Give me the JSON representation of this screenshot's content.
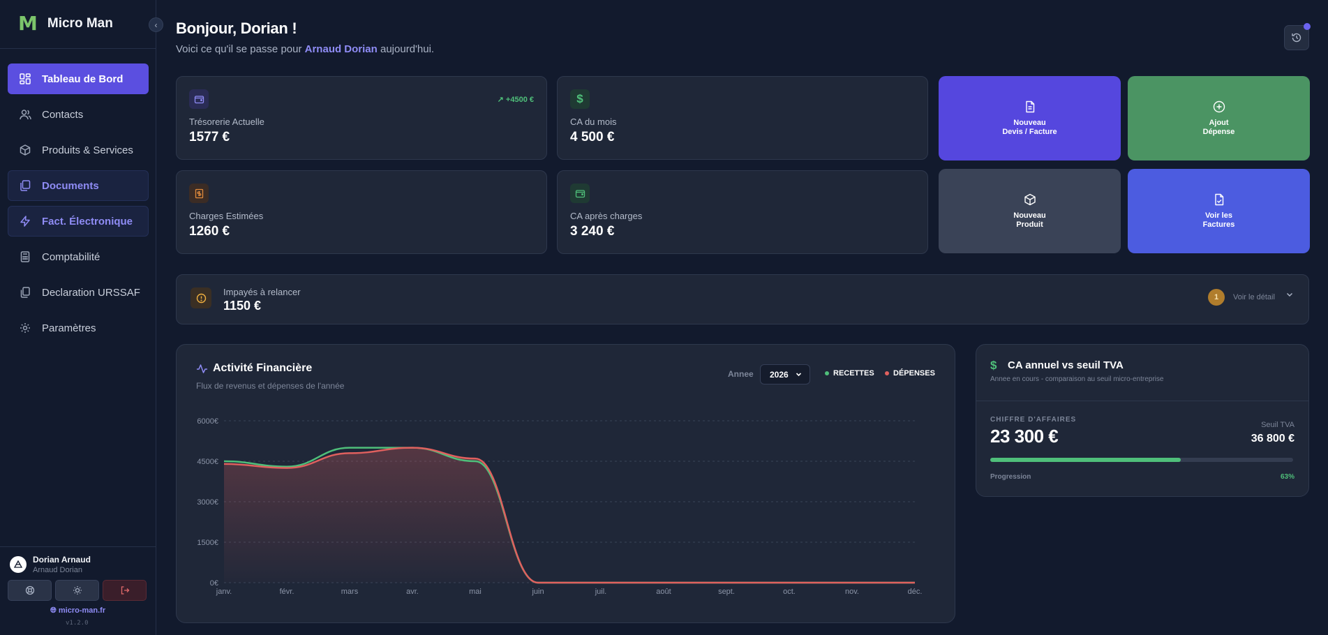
{
  "brand": {
    "logo": "M",
    "name": "Micro Man"
  },
  "sidebar": {
    "items": [
      {
        "label": "Tableau de Bord",
        "icon": "dashboard-icon",
        "state": "active"
      },
      {
        "label": "Contacts",
        "icon": "users-icon",
        "state": "normal"
      },
      {
        "label": "Produits & Services",
        "icon": "package-icon",
        "state": "normal"
      },
      {
        "label": "Documents",
        "icon": "documents-icon",
        "state": "tinted"
      },
      {
        "label": "Fact. Électronique",
        "icon": "lightning-icon",
        "state": "tinted"
      },
      {
        "label": "Comptabilité",
        "icon": "calculator-icon",
        "state": "normal"
      },
      {
        "label": "Declaration URSSAF",
        "icon": "copy-icon",
        "state": "normal"
      },
      {
        "label": "Paramètres",
        "icon": "gear-icon",
        "state": "normal"
      }
    ],
    "user": {
      "name": "Dorian Arnaud",
      "sub": "Arnaud Dorian"
    },
    "site": "micro-man.fr",
    "version": "v1.2.0"
  },
  "header": {
    "greeting": "Bonjour, Dorian !",
    "sub_prefix": "Voici ce qu'il se passe pour ",
    "sub_name": "Arnaud Dorian",
    "sub_suffix": " aujourd'hui."
  },
  "stats": [
    {
      "label": "Trésorerie Actuelle",
      "value": "1577 €",
      "trend": "↗ +4500 €",
      "icon": "wallet-icon",
      "color": "#6b63f0"
    },
    {
      "label": "CA du mois",
      "value": "4 500 €",
      "icon": "dollar-icon",
      "color": "#4fbf7a"
    },
    {
      "label": "Charges Estimées",
      "value": "1260 €",
      "icon": "receipt-icon",
      "color": "#e08a3c"
    },
    {
      "label": "CA après charges",
      "value": "3 240 €",
      "icon": "wallet-icon",
      "color": "#4fbf7a"
    }
  ],
  "actions": [
    {
      "line1": "Nouveau",
      "line2": "Devis / Facture",
      "icon": "document-icon",
      "color": "#5547de"
    },
    {
      "line1": "Ajout",
      "line2": "Dépense",
      "icon": "plus-circle-icon",
      "color": "#4b9463"
    },
    {
      "line1": "Nouveau",
      "line2": "Produit",
      "icon": "box-icon",
      "color": "#3a4357"
    },
    {
      "line1": "Voir les",
      "line2": "Factures",
      "icon": "file-check-icon",
      "color": "#4c5ce0"
    }
  ],
  "unpaid": {
    "label": "Impayés à relancer",
    "value": "1150 €",
    "count": "1",
    "link": "Voir le détail"
  },
  "activity": {
    "title": "Activité Financière",
    "subtitle": "Flux de revenus et dépenses de l'année",
    "year_label": "Annee",
    "year": "2026",
    "legend": {
      "income": "RECETTES",
      "expenses": "DÉPENSES"
    }
  },
  "chart_data": {
    "type": "area",
    "categories": [
      "janv.",
      "févr.",
      "mars",
      "avr.",
      "mai",
      "juin",
      "juil.",
      "août",
      "sept.",
      "oct.",
      "nov.",
      "déc."
    ],
    "series": [
      {
        "name": "RECETTES",
        "color": "#4fbf7a",
        "values": [
          4500,
          4300,
          5000,
          5000,
          4500,
          0,
          0,
          0,
          0,
          0,
          0,
          0
        ]
      },
      {
        "name": "DÉPENSES",
        "color": "#e0605e",
        "values": [
          4400,
          4250,
          4800,
          5000,
          4600,
          0,
          0,
          0,
          0,
          0,
          0,
          0
        ]
      }
    ],
    "yticks": [
      "0€",
      "1500€",
      "3000€",
      "4500€",
      "6000€"
    ],
    "ytick_values": [
      0,
      1500,
      3000,
      4500,
      6000
    ],
    "ylim": [
      0,
      6000
    ],
    "grid": true
  },
  "tva": {
    "title": "CA annuel vs seuil TVA",
    "subtitle": "Annee en cours - comparaison au seuil micro-entreprise",
    "ca_label": "CHIFFRE D'AFFAIRES",
    "ca_value": "23 300 €",
    "seuil_label": "Seuil TVA",
    "seuil_value": "36 800 €",
    "progress_label": "Progression",
    "progress_text": "63%",
    "progress": 0.63
  }
}
